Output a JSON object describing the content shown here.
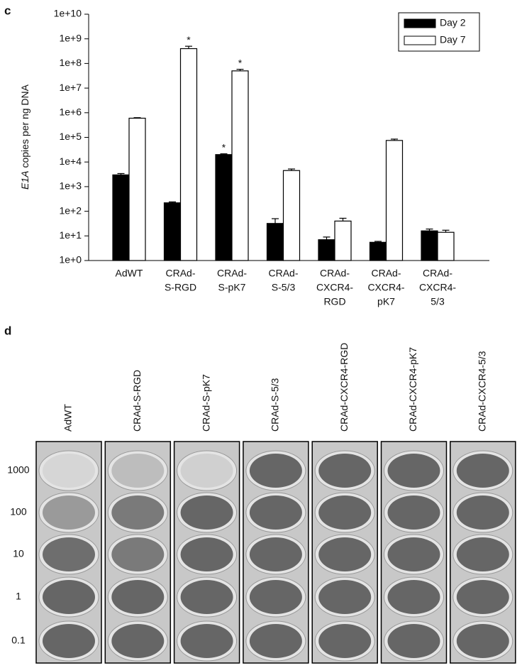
{
  "panel_c": {
    "label": "c",
    "chart_data": {
      "type": "bar",
      "log_scale": true,
      "ylabel": {
        "italic": "E1A",
        "text": "copies per ng DNA"
      },
      "categories": [
        [
          "AdWT"
        ],
        [
          "CRAd-",
          "S-RGD"
        ],
        [
          "CRAd-",
          "S-pK7"
        ],
        [
          "CRAd-",
          "S-5/3"
        ],
        [
          "CRAd-",
          "CXCR4-",
          "RGD"
        ],
        [
          "CRAd-",
          "CXCR4-",
          "pK7"
        ],
        [
          "CRAd-",
          "CXCR4-",
          "5/3"
        ]
      ],
      "series": [
        {
          "name": "Day 2",
          "color": "#000000",
          "values": [
            3000,
            220,
            20000,
            32,
            7,
            5.5,
            16
          ],
          "errors": [
            400,
            20,
            1500,
            18,
            2,
            0.5,
            3
          ],
          "annotations": [
            null,
            null,
            "*",
            null,
            null,
            null,
            null
          ]
        },
        {
          "name": "Day 7",
          "color": "#ffffff",
          "values": [
            600000,
            400000000,
            50000000,
            4500,
            40,
            75000,
            14
          ],
          "errors": [
            30000,
            100000000,
            8000000,
            700,
            12,
            10000,
            3
          ],
          "annotations": [
            null,
            "*",
            "*",
            null,
            null,
            null,
            null
          ]
        }
      ],
      "ylim": [
        1,
        10000000000
      ],
      "yticks": [
        {
          "value": 1,
          "label": "1e+0"
        },
        {
          "value": 10,
          "label": "1e+1"
        },
        {
          "value": 100,
          "label": "1e+2"
        },
        {
          "value": 1000,
          "label": "1e+3"
        },
        {
          "value": 10000,
          "label": "1e+4"
        },
        {
          "value": 100000,
          "label": "1e+5"
        },
        {
          "value": 1000000,
          "label": "1e+6"
        },
        {
          "value": 10000000,
          "label": "1e+7"
        },
        {
          "value": 100000000,
          "label": "1e+8"
        },
        {
          "value": 1000000000,
          "label": "1e+9"
        },
        {
          "value": 10000000000,
          "label": "1e+10"
        }
      ],
      "legend": "upper-right"
    }
  },
  "panel_d": {
    "label": "d",
    "columns": [
      "AdWT",
      "CRAd-S-RGD",
      "CRAd-S-pK7",
      "CRAd-S-5/3",
      "CRAd-CXCR4-RGD",
      "CRAd-CXCR4-pK7",
      "CRAd-CXCR4-5/3"
    ],
    "rows": [
      "1000",
      "100",
      "10",
      "1",
      "0.1"
    ]
  }
}
